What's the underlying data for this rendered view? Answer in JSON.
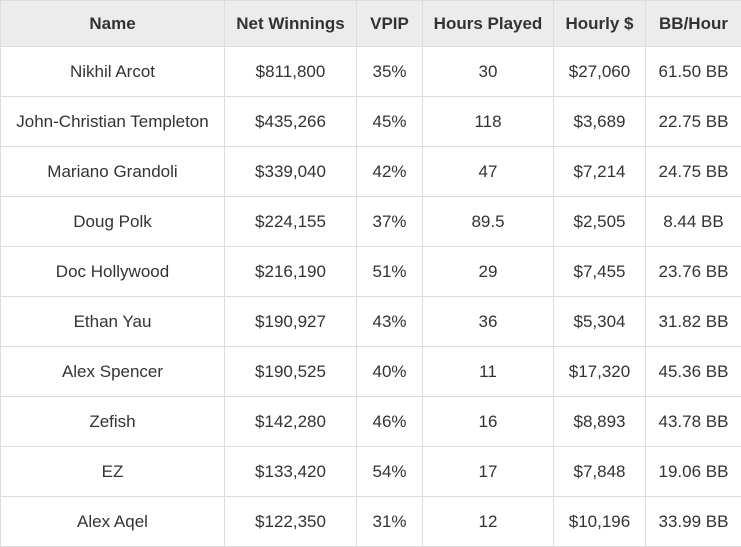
{
  "table": {
    "columns": [
      "Name",
      "Net Winnings",
      "VPIP",
      "Hours Played",
      "Hourly $",
      "BB/Hour"
    ],
    "rows": [
      [
        "Nikhil Arcot",
        "$811,800",
        "35%",
        "30",
        "$27,060",
        "61.50 BB"
      ],
      [
        "John-Christian Templeton",
        "$435,266",
        "45%",
        "118",
        "$3,689",
        "22.75 BB"
      ],
      [
        "Mariano Grandoli",
        "$339,040",
        "42%",
        "47",
        "$7,214",
        "24.75 BB"
      ],
      [
        "Doug Polk",
        "$224,155",
        "37%",
        "89.5",
        "$2,505",
        "8.44 BB"
      ],
      [
        "Doc Hollywood",
        "$216,190",
        "51%",
        "29",
        "$7,455",
        "23.76 BB"
      ],
      [
        "Ethan Yau",
        "$190,927",
        "43%",
        "36",
        "$5,304",
        "31.82 BB"
      ],
      [
        "Alex Spencer",
        "$190,525",
        "40%",
        "11",
        "$17,320",
        "45.36 BB"
      ],
      [
        "Zefish",
        "$142,280",
        "46%",
        "16",
        "$8,893",
        "43.78 BB"
      ],
      [
        "EZ",
        "$133,420",
        "54%",
        "17",
        "$7,848",
        "19.06 BB"
      ],
      [
        "Alex Aqel",
        "$122,350",
        "31%",
        "12",
        "$10,196",
        "33.99 BB"
      ]
    ]
  }
}
